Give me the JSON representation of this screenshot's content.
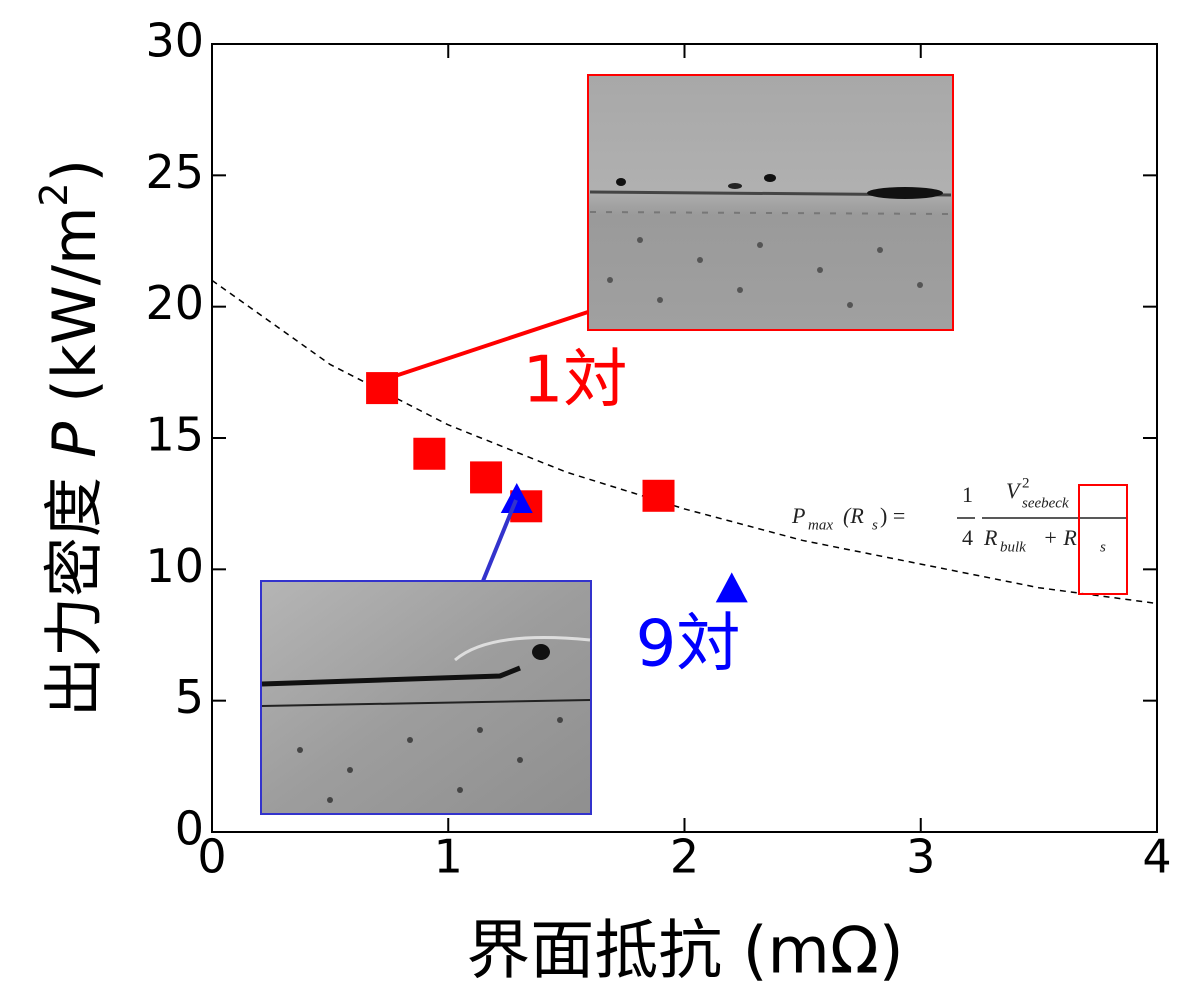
{
  "chart_data": {
    "type": "scatter",
    "x_label": "界面抵抗 (mΩ)",
    "y_label": {
      "main": "出力密度",
      "var": "P",
      "unit": "(kW/m",
      "sup": "2",
      "close": ")"
    },
    "xlim": [
      0,
      4
    ],
    "xticks": [
      0,
      1,
      2,
      3,
      4
    ],
    "ylim": [
      0,
      30
    ],
    "yticks": [
      0,
      5,
      10,
      15,
      20,
      25,
      30
    ],
    "series": [
      {
        "type": "line",
        "style": "dashed",
        "color": "#000000",
        "x": [
          0,
          0.5,
          1,
          1.5,
          2,
          2.5,
          3,
          3.5,
          4
        ],
        "values": [
          21.0,
          17.8,
          15.5,
          13.7,
          12.3,
          11.1,
          10.2,
          9.3,
          8.7
        ]
      },
      {
        "type": "scatter",
        "marker": "square",
        "color": "#ff0000",
        "x": [
          0.72,
          0.92,
          1.16,
          1.33,
          1.89
        ],
        "values": [
          16.9,
          14.4,
          13.5,
          12.4,
          12.8
        ]
      },
      {
        "type": "scatter",
        "marker": "triangle",
        "color": "#0000ff",
        "x": [
          1.29,
          2.2
        ],
        "values": [
          12.6,
          9.2
        ]
      }
    ],
    "annotations": {
      "red_label": "1対",
      "blue_label": "9対"
    },
    "formula": {
      "p": "P",
      "max": "max",
      "lhs_open": "(R",
      "s": "s",
      "lhs_close": ") =",
      "num1": "1",
      "den1": "4",
      "v": "V",
      "v_sup": "2",
      "v_sub": "seebeck",
      "r": "R",
      "bulk": "bulk",
      "plus": "+ R",
      "s2": "s"
    }
  }
}
